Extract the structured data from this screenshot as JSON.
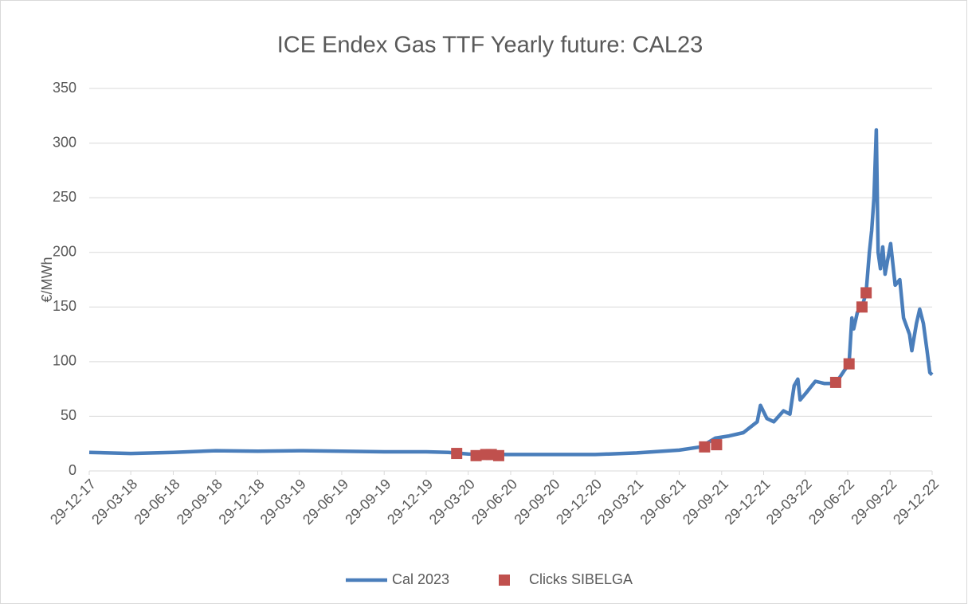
{
  "chart_data": {
    "type": "line",
    "title": "ICE Endex Gas TTF Yearly future: CAL23",
    "ylabel": "€/MWh",
    "ylim": [
      0,
      350
    ],
    "yticks": [
      0,
      50,
      100,
      150,
      200,
      250,
      300,
      350
    ],
    "grid": true,
    "xlim": [
      "2017-12-29",
      "2022-12-29"
    ],
    "xticks": [
      {
        "value": "2017-12-29",
        "label": "29-12-17"
      },
      {
        "value": "2018-03-29",
        "label": "29-03-18"
      },
      {
        "value": "2018-06-29",
        "label": "29-06-18"
      },
      {
        "value": "2018-09-29",
        "label": "29-09-18"
      },
      {
        "value": "2018-12-29",
        "label": "29-12-18"
      },
      {
        "value": "2019-03-29",
        "label": "29-03-19"
      },
      {
        "value": "2019-06-29",
        "label": "29-06-19"
      },
      {
        "value": "2019-09-29",
        "label": "29-09-19"
      },
      {
        "value": "2019-12-29",
        "label": "29-12-19"
      },
      {
        "value": "2020-03-29",
        "label": "29-03-20"
      },
      {
        "value": "2020-06-29",
        "label": "29-06-20"
      },
      {
        "value": "2020-09-29",
        "label": "29-09-20"
      },
      {
        "value": "2020-12-29",
        "label": "29-12-20"
      },
      {
        "value": "2021-03-29",
        "label": "29-03-21"
      },
      {
        "value": "2021-06-29",
        "label": "29-06-21"
      },
      {
        "value": "2021-09-29",
        "label": "29-09-21"
      },
      {
        "value": "2021-12-29",
        "label": "29-12-21"
      },
      {
        "value": "2022-03-29",
        "label": "29-03-22"
      },
      {
        "value": "2022-06-29",
        "label": "29-06-22"
      },
      {
        "value": "2022-09-29",
        "label": "29-09-22"
      },
      {
        "value": "2022-12-29",
        "label": "29-12-22"
      }
    ],
    "series": [
      {
        "name": "Cal 2023",
        "type": "line",
        "color": "#4a7ebb",
        "x": [
          "2017-12-29",
          "2018-03-29",
          "2018-06-29",
          "2018-09-29",
          "2018-12-29",
          "2019-03-29",
          "2019-06-29",
          "2019-09-29",
          "2019-12-29",
          "2020-02-15",
          "2020-03-29",
          "2020-06-29",
          "2020-09-29",
          "2020-12-29",
          "2021-03-29",
          "2021-06-29",
          "2021-08-15",
          "2021-09-15",
          "2021-10-15",
          "2021-11-15",
          "2021-12-15",
          "2021-12-22",
          "2022-01-05",
          "2022-01-20",
          "2022-02-10",
          "2022-02-24",
          "2022-03-05",
          "2022-03-13",
          "2022-03-18",
          "2022-04-01",
          "2022-04-20",
          "2022-05-10",
          "2022-06-03",
          "2022-06-22",
          "2022-07-02",
          "2022-07-08",
          "2022-07-12",
          "2022-07-20",
          "2022-07-30",
          "2022-08-08",
          "2022-08-15",
          "2022-08-20",
          "2022-08-25",
          "2022-08-30",
          "2022-09-03",
          "2022-09-08",
          "2022-09-13",
          "2022-09-18",
          "2022-09-30",
          "2022-10-10",
          "2022-10-20",
          "2022-10-28",
          "2022-11-10",
          "2022-11-15",
          "2022-11-25",
          "2022-12-02",
          "2022-12-10",
          "2022-12-18",
          "2022-12-24",
          "2022-12-29"
        ],
        "values": [
          17,
          16,
          17,
          18.5,
          18,
          18.5,
          18,
          17.5,
          17.5,
          17,
          15.5,
          15,
          15,
          15,
          16.5,
          19,
          22,
          30,
          32,
          35,
          45,
          60,
          48,
          45,
          55,
          52,
          78,
          84,
          65,
          72,
          82,
          80,
          80,
          92,
          98,
          140,
          130,
          145,
          150,
          163,
          200,
          220,
          250,
          312,
          200,
          185,
          205,
          180,
          208,
          170,
          175,
          140,
          125,
          110,
          135,
          148,
          135,
          110,
          90,
          88
        ]
      },
      {
        "name": "Clicks SIBELGA",
        "type": "scatter",
        "color": "#c0504d",
        "x": [
          "2020-03-04",
          "2020-04-15",
          "2020-05-06",
          "2020-05-18",
          "2020-06-03",
          "2021-08-23",
          "2021-09-18",
          "2022-06-03",
          "2022-07-02",
          "2022-07-30",
          "2022-08-08"
        ],
        "values": [
          16,
          14,
          15,
          15,
          14,
          22,
          24,
          81,
          98,
          150,
          163
        ]
      }
    ]
  }
}
